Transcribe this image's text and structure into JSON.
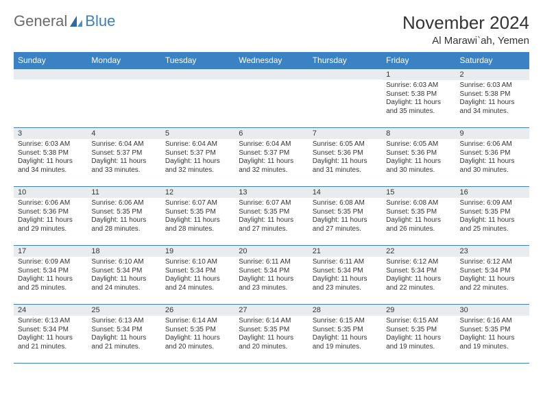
{
  "logo": {
    "text1": "General",
    "text2": "Blue"
  },
  "title": "November 2024",
  "location": "Al Marawi`ah, Yemen",
  "colors": {
    "header_bg": "#3b82c4",
    "header_text": "#ffffff",
    "border": "#3b7fb8",
    "daynum_bg": "#e9ecef",
    "logo_gray": "#6a6a6a",
    "logo_blue": "#3b7fb8"
  },
  "weekdays": [
    "Sunday",
    "Monday",
    "Tuesday",
    "Wednesday",
    "Thursday",
    "Friday",
    "Saturday"
  ],
  "weeks": [
    [
      {
        "n": "",
        "sunrise": "",
        "sunset": "",
        "daylight": ""
      },
      {
        "n": "",
        "sunrise": "",
        "sunset": "",
        "daylight": ""
      },
      {
        "n": "",
        "sunrise": "",
        "sunset": "",
        "daylight": ""
      },
      {
        "n": "",
        "sunrise": "",
        "sunset": "",
        "daylight": ""
      },
      {
        "n": "",
        "sunrise": "",
        "sunset": "",
        "daylight": ""
      },
      {
        "n": "1",
        "sunrise": "Sunrise: 6:03 AM",
        "sunset": "Sunset: 5:38 PM",
        "daylight": "Daylight: 11 hours and 35 minutes."
      },
      {
        "n": "2",
        "sunrise": "Sunrise: 6:03 AM",
        "sunset": "Sunset: 5:38 PM",
        "daylight": "Daylight: 11 hours and 34 minutes."
      }
    ],
    [
      {
        "n": "3",
        "sunrise": "Sunrise: 6:03 AM",
        "sunset": "Sunset: 5:38 PM",
        "daylight": "Daylight: 11 hours and 34 minutes."
      },
      {
        "n": "4",
        "sunrise": "Sunrise: 6:04 AM",
        "sunset": "Sunset: 5:37 PM",
        "daylight": "Daylight: 11 hours and 33 minutes."
      },
      {
        "n": "5",
        "sunrise": "Sunrise: 6:04 AM",
        "sunset": "Sunset: 5:37 PM",
        "daylight": "Daylight: 11 hours and 32 minutes."
      },
      {
        "n": "6",
        "sunrise": "Sunrise: 6:04 AM",
        "sunset": "Sunset: 5:37 PM",
        "daylight": "Daylight: 11 hours and 32 minutes."
      },
      {
        "n": "7",
        "sunrise": "Sunrise: 6:05 AM",
        "sunset": "Sunset: 5:36 PM",
        "daylight": "Daylight: 11 hours and 31 minutes."
      },
      {
        "n": "8",
        "sunrise": "Sunrise: 6:05 AM",
        "sunset": "Sunset: 5:36 PM",
        "daylight": "Daylight: 11 hours and 30 minutes."
      },
      {
        "n": "9",
        "sunrise": "Sunrise: 6:06 AM",
        "sunset": "Sunset: 5:36 PM",
        "daylight": "Daylight: 11 hours and 30 minutes."
      }
    ],
    [
      {
        "n": "10",
        "sunrise": "Sunrise: 6:06 AM",
        "sunset": "Sunset: 5:36 PM",
        "daylight": "Daylight: 11 hours and 29 minutes."
      },
      {
        "n": "11",
        "sunrise": "Sunrise: 6:06 AM",
        "sunset": "Sunset: 5:35 PM",
        "daylight": "Daylight: 11 hours and 28 minutes."
      },
      {
        "n": "12",
        "sunrise": "Sunrise: 6:07 AM",
        "sunset": "Sunset: 5:35 PM",
        "daylight": "Daylight: 11 hours and 28 minutes."
      },
      {
        "n": "13",
        "sunrise": "Sunrise: 6:07 AM",
        "sunset": "Sunset: 5:35 PM",
        "daylight": "Daylight: 11 hours and 27 minutes."
      },
      {
        "n": "14",
        "sunrise": "Sunrise: 6:08 AM",
        "sunset": "Sunset: 5:35 PM",
        "daylight": "Daylight: 11 hours and 27 minutes."
      },
      {
        "n": "15",
        "sunrise": "Sunrise: 6:08 AM",
        "sunset": "Sunset: 5:35 PM",
        "daylight": "Daylight: 11 hours and 26 minutes."
      },
      {
        "n": "16",
        "sunrise": "Sunrise: 6:09 AM",
        "sunset": "Sunset: 5:35 PM",
        "daylight": "Daylight: 11 hours and 25 minutes."
      }
    ],
    [
      {
        "n": "17",
        "sunrise": "Sunrise: 6:09 AM",
        "sunset": "Sunset: 5:34 PM",
        "daylight": "Daylight: 11 hours and 25 minutes."
      },
      {
        "n": "18",
        "sunrise": "Sunrise: 6:10 AM",
        "sunset": "Sunset: 5:34 PM",
        "daylight": "Daylight: 11 hours and 24 minutes."
      },
      {
        "n": "19",
        "sunrise": "Sunrise: 6:10 AM",
        "sunset": "Sunset: 5:34 PM",
        "daylight": "Daylight: 11 hours and 24 minutes."
      },
      {
        "n": "20",
        "sunrise": "Sunrise: 6:11 AM",
        "sunset": "Sunset: 5:34 PM",
        "daylight": "Daylight: 11 hours and 23 minutes."
      },
      {
        "n": "21",
        "sunrise": "Sunrise: 6:11 AM",
        "sunset": "Sunset: 5:34 PM",
        "daylight": "Daylight: 11 hours and 23 minutes."
      },
      {
        "n": "22",
        "sunrise": "Sunrise: 6:12 AM",
        "sunset": "Sunset: 5:34 PM",
        "daylight": "Daylight: 11 hours and 22 minutes."
      },
      {
        "n": "23",
        "sunrise": "Sunrise: 6:12 AM",
        "sunset": "Sunset: 5:34 PM",
        "daylight": "Daylight: 11 hours and 22 minutes."
      }
    ],
    [
      {
        "n": "24",
        "sunrise": "Sunrise: 6:13 AM",
        "sunset": "Sunset: 5:34 PM",
        "daylight": "Daylight: 11 hours and 21 minutes."
      },
      {
        "n": "25",
        "sunrise": "Sunrise: 6:13 AM",
        "sunset": "Sunset: 5:34 PM",
        "daylight": "Daylight: 11 hours and 21 minutes."
      },
      {
        "n": "26",
        "sunrise": "Sunrise: 6:14 AM",
        "sunset": "Sunset: 5:35 PM",
        "daylight": "Daylight: 11 hours and 20 minutes."
      },
      {
        "n": "27",
        "sunrise": "Sunrise: 6:14 AM",
        "sunset": "Sunset: 5:35 PM",
        "daylight": "Daylight: 11 hours and 20 minutes."
      },
      {
        "n": "28",
        "sunrise": "Sunrise: 6:15 AM",
        "sunset": "Sunset: 5:35 PM",
        "daylight": "Daylight: 11 hours and 19 minutes."
      },
      {
        "n": "29",
        "sunrise": "Sunrise: 6:15 AM",
        "sunset": "Sunset: 5:35 PM",
        "daylight": "Daylight: 11 hours and 19 minutes."
      },
      {
        "n": "30",
        "sunrise": "Sunrise: 6:16 AM",
        "sunset": "Sunset: 5:35 PM",
        "daylight": "Daylight: 11 hours and 19 minutes."
      }
    ]
  ]
}
